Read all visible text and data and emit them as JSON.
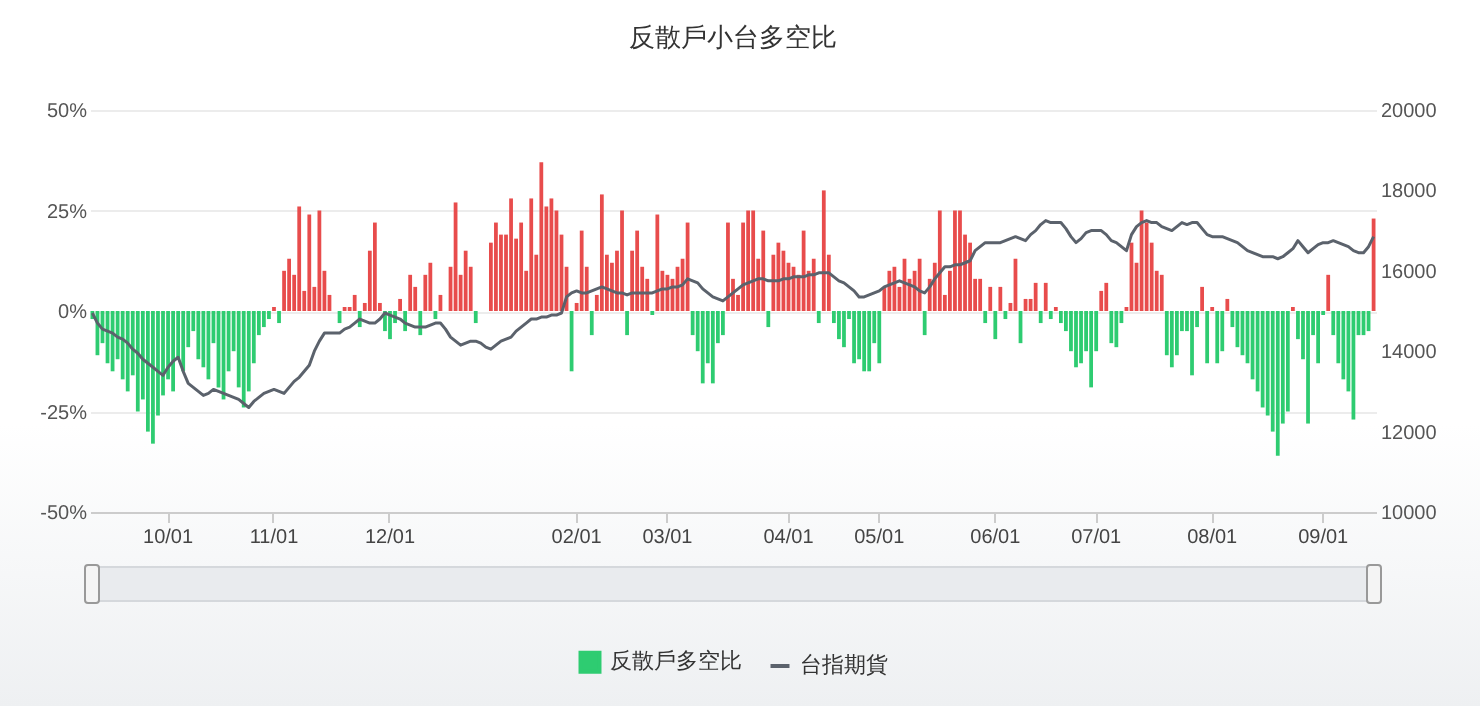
{
  "chart_data": {
    "type": "bar",
    "title": "反散戶小台多空比",
    "categories": [
      null,
      null,
      null,
      null,
      null,
      null,
      null,
      null,
      null,
      null,
      null,
      null,
      null,
      null,
      null,
      "10/01",
      null,
      null,
      null,
      null,
      null,
      null,
      null,
      null,
      null,
      null,
      null,
      null,
      null,
      null,
      null,
      null,
      null,
      null,
      null,
      null,
      "11/01",
      null,
      null,
      null,
      null,
      null,
      null,
      null,
      null,
      null,
      null,
      null,
      null,
      null,
      null,
      null,
      null,
      null,
      null,
      null,
      null,
      null,
      null,
      "12/01",
      null,
      null,
      null,
      null,
      null,
      null,
      null,
      null,
      null,
      null,
      null,
      null,
      null,
      null,
      null,
      null,
      null,
      null,
      null,
      null,
      null,
      null,
      null,
      null,
      null,
      null,
      null,
      null,
      null,
      null,
      null,
      null,
      null,
      null,
      null,
      null,
      "02/01",
      null,
      null,
      null,
      null,
      null,
      null,
      null,
      null,
      null,
      null,
      null,
      null,
      null,
      null,
      null,
      null,
      null,
      "03/01",
      null,
      null,
      null,
      null,
      null,
      null,
      null,
      null,
      null,
      null,
      null,
      null,
      null,
      null,
      null,
      null,
      null,
      null,
      null,
      null,
      null,
      null,
      null,
      "04/01",
      null,
      null,
      null,
      null,
      null,
      null,
      null,
      null,
      null,
      null,
      null,
      null,
      null,
      null,
      null,
      null,
      null,
      "05/01",
      null,
      null,
      null,
      null,
      null,
      null,
      null,
      null,
      null,
      null,
      null,
      null,
      null,
      null,
      null,
      null,
      null,
      null,
      null,
      null,
      null,
      null,
      "06/01",
      null,
      null,
      null,
      null,
      null,
      null,
      null,
      null,
      null,
      null,
      null,
      null,
      null,
      null,
      null,
      null,
      null,
      null,
      null,
      "07/01",
      null,
      null,
      null,
      null,
      null,
      null,
      null,
      null,
      null,
      null,
      null,
      null,
      null,
      null,
      null,
      null,
      null,
      null,
      null,
      null,
      null,
      null,
      "08/01",
      null,
      null,
      null,
      null,
      null,
      null,
      null,
      null,
      null,
      null,
      null,
      null,
      null,
      null,
      null,
      null,
      null,
      null,
      null,
      null,
      null,
      "09/01",
      null,
      null,
      null,
      null,
      null,
      null,
      null,
      null,
      null,
      null
    ],
    "series": [
      {
        "name": "反散戶多空比",
        "values": [
          -2,
          -11,
          -8,
          -13,
          -15,
          -12,
          -17,
          -20,
          -16,
          -25,
          -22,
          -30,
          -33,
          -26,
          -21,
          -17,
          -20,
          -12,
          -15,
          -9,
          -5,
          -12,
          -14,
          -17,
          -8,
          -19,
          -22,
          -15,
          -10,
          -19,
          -24,
          -20,
          -13,
          -6,
          -4,
          -2,
          1,
          -3,
          10,
          13,
          9,
          26,
          5,
          24,
          6,
          25,
          10,
          4,
          0,
          -3,
          1,
          1,
          4,
          -4,
          2,
          15,
          22,
          2,
          -5,
          -7,
          -3,
          3,
          -5,
          9,
          6,
          -6,
          9,
          12,
          -2,
          4,
          0,
          11,
          27,
          9,
          15,
          11,
          -3,
          0,
          0,
          17,
          22,
          19,
          19,
          28,
          18,
          22,
          10,
          28,
          14,
          37,
          26,
          28,
          25,
          19,
          11,
          -15,
          2,
          20,
          11,
          -6,
          4,
          29,
          14,
          12,
          15,
          25,
          -6,
          15,
          20,
          11,
          8,
          -1,
          24,
          10,
          9,
          8,
          11,
          13,
          22,
          -6,
          -10,
          -18,
          -13,
          -18,
          -8,
          -6,
          22,
          8,
          4,
          22,
          25,
          25,
          13,
          20,
          -4,
          14,
          17,
          15,
          12,
          11,
          9,
          20,
          10,
          13,
          -3,
          30,
          14,
          -3,
          -7,
          -9,
          -2,
          -13,
          -12,
          -15,
          -15,
          -8,
          -13,
          6,
          10,
          11,
          6,
          13,
          8,
          10,
          13,
          -6,
          8,
          12,
          25,
          4,
          10,
          25,
          25,
          19,
          17,
          8,
          8,
          -3,
          6,
          -7,
          6,
          -2,
          2,
          13,
          -8,
          3,
          3,
          7,
          -3,
          7,
          -2,
          1,
          -3,
          -5,
          -10,
          -14,
          -13,
          -10,
          -19,
          -10,
          5,
          7,
          -8,
          -9,
          -3,
          1,
          17,
          12,
          25,
          22,
          17,
          10,
          9,
          -11,
          -14,
          -11,
          -5,
          -5,
          -16,
          -4,
          6,
          -13,
          1,
          -13,
          -10,
          3,
          -4,
          -9,
          -11,
          -13,
          -17,
          -20,
          -24,
          -26,
          -30,
          -36,
          -28,
          -25,
          1,
          -7,
          -12,
          -28,
          -6,
          -13,
          -1,
          9,
          -6,
          -13,
          -17,
          -20,
          -27,
          -6,
          -6,
          -5,
          23
        ],
        "colors": [
          "#2ecc71",
          "#2ecc71",
          "#2ecc71",
          "#2ecc71",
          "#2ecc71",
          "#2ecc71",
          "#2ecc71",
          "#2ecc71",
          "#2ecc71",
          "#2ecc71",
          "#2ecc71",
          "#2ecc71",
          "#2ecc71",
          "#2ecc71",
          "#2ecc71",
          "#2ecc71",
          "#2ecc71",
          "#2ecc71",
          "#2ecc71",
          "#2ecc71",
          "#2ecc71",
          "#2ecc71",
          "#2ecc71",
          "#2ecc71",
          "#2ecc71",
          "#2ecc71",
          "#2ecc71",
          "#2ecc71",
          "#2ecc71",
          "#2ecc71",
          "#2ecc71",
          "#2ecc71",
          "#2ecc71",
          "#2ecc71",
          "#2ecc71",
          "#2ecc71",
          "#e84c4c",
          "#2ecc71",
          "#e84c4c",
          "#e84c4c",
          "#e84c4c",
          "#e84c4c",
          "#e84c4c",
          "#e84c4c",
          "#e84c4c",
          "#e84c4c",
          "#e84c4c",
          "#e84c4c",
          "#e84c4c",
          "#2ecc71",
          "#e84c4c",
          "#e84c4c",
          "#e84c4c",
          "#2ecc71",
          "#e84c4c",
          "#e84c4c",
          "#e84c4c",
          "#e84c4c",
          "#2ecc71",
          "#2ecc71",
          "#2ecc71",
          "#e84c4c",
          "#2ecc71",
          "#e84c4c",
          "#e84c4c",
          "#2ecc71",
          "#e84c4c",
          "#e84c4c",
          "#2ecc71",
          "#e84c4c",
          "#e84c4c",
          "#e84c4c",
          "#e84c4c",
          "#e84c4c",
          "#e84c4c",
          "#e84c4c",
          "#2ecc71",
          "#e84c4c",
          "#e84c4c",
          "#e84c4c",
          "#e84c4c",
          "#e84c4c",
          "#e84c4c",
          "#e84c4c",
          "#e84c4c",
          "#e84c4c",
          "#e84c4c",
          "#e84c4c",
          "#e84c4c",
          "#e84c4c",
          "#e84c4c",
          "#e84c4c",
          "#e84c4c",
          "#e84c4c",
          "#e84c4c",
          "#2ecc71",
          "#e84c4c",
          "#e84c4c",
          "#e84c4c",
          "#2ecc71",
          "#e84c4c",
          "#e84c4c",
          "#e84c4c",
          "#e84c4c",
          "#e84c4c",
          "#e84c4c",
          "#2ecc71",
          "#e84c4c",
          "#e84c4c",
          "#e84c4c",
          "#e84c4c",
          "#2ecc71",
          "#e84c4c",
          "#e84c4c",
          "#e84c4c",
          "#e84c4c",
          "#e84c4c",
          "#e84c4c",
          "#e84c4c",
          "#2ecc71",
          "#2ecc71",
          "#2ecc71",
          "#2ecc71",
          "#2ecc71",
          "#2ecc71",
          "#2ecc71",
          "#e84c4c",
          "#e84c4c",
          "#e84c4c",
          "#e84c4c",
          "#e84c4c",
          "#e84c4c",
          "#e84c4c",
          "#e84c4c",
          "#2ecc71",
          "#e84c4c",
          "#e84c4c",
          "#e84c4c",
          "#e84c4c",
          "#e84c4c",
          "#e84c4c",
          "#e84c4c",
          "#e84c4c",
          "#e84c4c",
          "#2ecc71",
          "#e84c4c",
          "#e84c4c",
          "#2ecc71",
          "#2ecc71",
          "#2ecc71",
          "#2ecc71",
          "#2ecc71",
          "#2ecc71",
          "#2ecc71",
          "#2ecc71",
          "#2ecc71",
          "#2ecc71",
          "#e84c4c",
          "#e84c4c",
          "#e84c4c",
          "#e84c4c",
          "#e84c4c",
          "#e84c4c",
          "#e84c4c",
          "#e84c4c",
          "#2ecc71",
          "#e84c4c",
          "#e84c4c",
          "#e84c4c",
          "#e84c4c",
          "#e84c4c",
          "#e84c4c",
          "#e84c4c",
          "#e84c4c",
          "#e84c4c",
          "#e84c4c",
          "#e84c4c",
          "#2ecc71",
          "#e84c4c",
          "#2ecc71",
          "#e84c4c",
          "#2ecc71",
          "#e84c4c",
          "#e84c4c",
          "#2ecc71",
          "#e84c4c",
          "#e84c4c",
          "#e84c4c",
          "#2ecc71",
          "#e84c4c",
          "#2ecc71",
          "#e84c4c",
          "#2ecc71",
          "#2ecc71",
          "#2ecc71",
          "#2ecc71",
          "#2ecc71",
          "#2ecc71",
          "#2ecc71",
          "#2ecc71",
          "#e84c4c",
          "#e84c4c",
          "#2ecc71",
          "#2ecc71",
          "#2ecc71",
          "#e84c4c",
          "#e84c4c",
          "#e84c4c",
          "#e84c4c",
          "#e84c4c",
          "#e84c4c",
          "#e84c4c",
          "#e84c4c",
          "#2ecc71",
          "#2ecc71",
          "#2ecc71",
          "#2ecc71",
          "#2ecc71",
          "#2ecc71",
          "#2ecc71",
          "#e84c4c",
          "#2ecc71",
          "#e84c4c",
          "#2ecc71",
          "#2ecc71",
          "#e84c4c",
          "#2ecc71",
          "#2ecc71",
          "#2ecc71",
          "#2ecc71",
          "#2ecc71",
          "#2ecc71",
          "#2ecc71",
          "#2ecc71",
          "#2ecc71",
          "#2ecc71",
          "#2ecc71",
          "#2ecc71",
          "#e84c4c",
          "#2ecc71",
          "#2ecc71",
          "#2ecc71",
          "#2ecc71",
          "#2ecc71",
          "#2ecc71",
          "#e84c4c",
          "#2ecc71",
          "#2ecc71",
          "#2ecc71",
          "#2ecc71",
          "#2ecc71",
          "#2ecc71",
          "#2ecc71",
          "#2ecc71",
          "#e84c4c"
        ]
      },
      {
        "name": "台指期貨",
        "type": "line",
        "axis": "y2",
        "color": "#5b626c",
        "values": [
          14950,
          14700,
          14550,
          14500,
          14450,
          14350,
          14300,
          14200,
          14050,
          13950,
          13800,
          13700,
          13600,
          13500,
          13400,
          13600,
          13750,
          13850,
          13500,
          13200,
          13100,
          13000,
          12900,
          12950,
          13050,
          13000,
          12950,
          12900,
          12850,
          12800,
          12700,
          12600,
          12750,
          12850,
          12950,
          13000,
          13050,
          13000,
          12950,
          13100,
          13250,
          13350,
          13500,
          13650,
          14000,
          14250,
          14450,
          14450,
          14450,
          14450,
          14550,
          14600,
          14700,
          14800,
          14750,
          14700,
          14700,
          14800,
          14950,
          14900,
          14850,
          14800,
          14700,
          14650,
          14600,
          14600,
          14600,
          14650,
          14700,
          14700,
          14550,
          14350,
          14250,
          14150,
          14200,
          14250,
          14250,
          14200,
          14100,
          14050,
          14150,
          14250,
          14300,
          14350,
          14500,
          14600,
          14700,
          14800,
          14800,
          14850,
          14850,
          14900,
          14900,
          14950,
          15350,
          15450,
          15500,
          15450,
          15450,
          15500,
          15550,
          15600,
          15550,
          15500,
          15450,
          15450,
          15400,
          15450,
          15450,
          15450,
          15450,
          15450,
          15500,
          15550,
          15550,
          15600,
          15600,
          15650,
          15800,
          15750,
          15700,
          15550,
          15450,
          15350,
          15300,
          15250,
          15350,
          15450,
          15550,
          15650,
          15700,
          15750,
          15800,
          15800,
          15750,
          15750,
          15750,
          15800,
          15800,
          15850,
          15850,
          15850,
          15900,
          15900,
          15950,
          15950,
          15950,
          15850,
          15750,
          15700,
          15600,
          15500,
          15350,
          15350,
          15400,
          15450,
          15500,
          15600,
          15650,
          15700,
          15750,
          15700,
          15650,
          15600,
          15500,
          15450,
          15600,
          15800,
          15950,
          16100,
          16100,
          16150,
          16150,
          16200,
          16250,
          16500,
          16600,
          16700,
          16700,
          16700,
          16700,
          16750,
          16800,
          16850,
          16800,
          16750,
          16900,
          17000,
          17150,
          17250,
          17200,
          17200,
          17200,
          17050,
          16850,
          16700,
          16800,
          16950,
          17000,
          17000,
          17000,
          16900,
          16750,
          16700,
          16600,
          16500,
          16900,
          17100,
          17200,
          17250,
          17200,
          17200,
          17100,
          17050,
          17000,
          17100,
          17200,
          17150,
          17200,
          17200,
          17050,
          16900,
          16850,
          16850,
          16850,
          16800,
          16750,
          16700,
          16600,
          16500,
          16450,
          16400,
          16350,
          16350,
          16350,
          16300,
          16350,
          16450,
          16550,
          16750,
          16600,
          16450,
          16550,
          16650,
          16700,
          16700,
          16750,
          16700,
          16650,
          16600,
          16500,
          16450,
          16450,
          16600,
          16850
        ]
      }
    ],
    "ylim": [
      -50,
      50
    ],
    "yticks": [
      {
        "value": -50,
        "label": "-50%"
      },
      {
        "value": -25,
        "label": "-25%"
      },
      {
        "value": 0,
        "label": "0%"
      },
      {
        "value": 25,
        "label": "25%"
      },
      {
        "value": 50,
        "label": "50%"
      }
    ],
    "y2lim": [
      10000,
      20000
    ],
    "y2ticks": [
      10000,
      12000,
      14000,
      16000,
      18000,
      20000
    ],
    "grid": "y",
    "legend": "bottom"
  }
}
